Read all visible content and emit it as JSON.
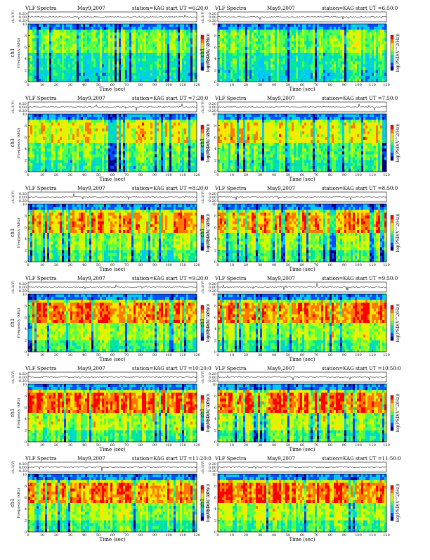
{
  "chart_data": {
    "type": "heatmap",
    "common": {
      "header_left": "VLF Spectra",
      "date": "May9,2007",
      "station": "station=KAG",
      "xlabel": "Time (sec)",
      "ylabel_ch": "ch1",
      "ylabel_freq": "Frequency (kHz)",
      "trace_label": "ch.1(V)",
      "colorbar_label": "log(PSD(V^2/Hz))",
      "x_ticks": [
        "0",
        "10",
        "20",
        "30",
        "40",
        "50",
        "60",
        "70",
        "80",
        "90",
        "100",
        "110",
        "120"
      ],
      "y_ticks": [
        "0",
        "2",
        "4",
        "6",
        "8",
        "10"
      ],
      "trace_ticks": [
        "0.20",
        "0.00",
        "-0.20"
      ],
      "xlim": [
        0,
        120
      ],
      "ylim": [
        0,
        10
      ],
      "colors": [
        "#00008b",
        "#0050ff",
        "#00c8ff",
        "#00e6a0",
        "#50ff50",
        "#c8ff00",
        "#ffe600",
        "#ff7800",
        "#ff0000"
      ]
    },
    "panels": [
      {
        "start": "start UT =6:20:0",
        "intensity": 0.35
      },
      {
        "start": "start UT =6:50:0",
        "intensity": 0.32
      },
      {
        "start": "start UT =7:20:0",
        "intensity": 0.55
      },
      {
        "start": "start UT =7:50:0",
        "intensity": 0.57
      },
      {
        "start": "start UT =8:20:0",
        "intensity": 0.72
      },
      {
        "start": "start UT =8:50:0",
        "intensity": 0.74
      },
      {
        "start": "start UT =9:20:0",
        "intensity": 0.82
      },
      {
        "start": "start UT =9:50:0",
        "intensity": 0.8
      },
      {
        "start": "start UT =10:20:0",
        "intensity": 0.86
      },
      {
        "start": "start UT =10:50:0",
        "intensity": 0.84
      },
      {
        "start": "start UT =11:20:0",
        "intensity": 0.8
      },
      {
        "start": "start UT =11:50:0",
        "intensity": 0.83
      }
    ]
  }
}
